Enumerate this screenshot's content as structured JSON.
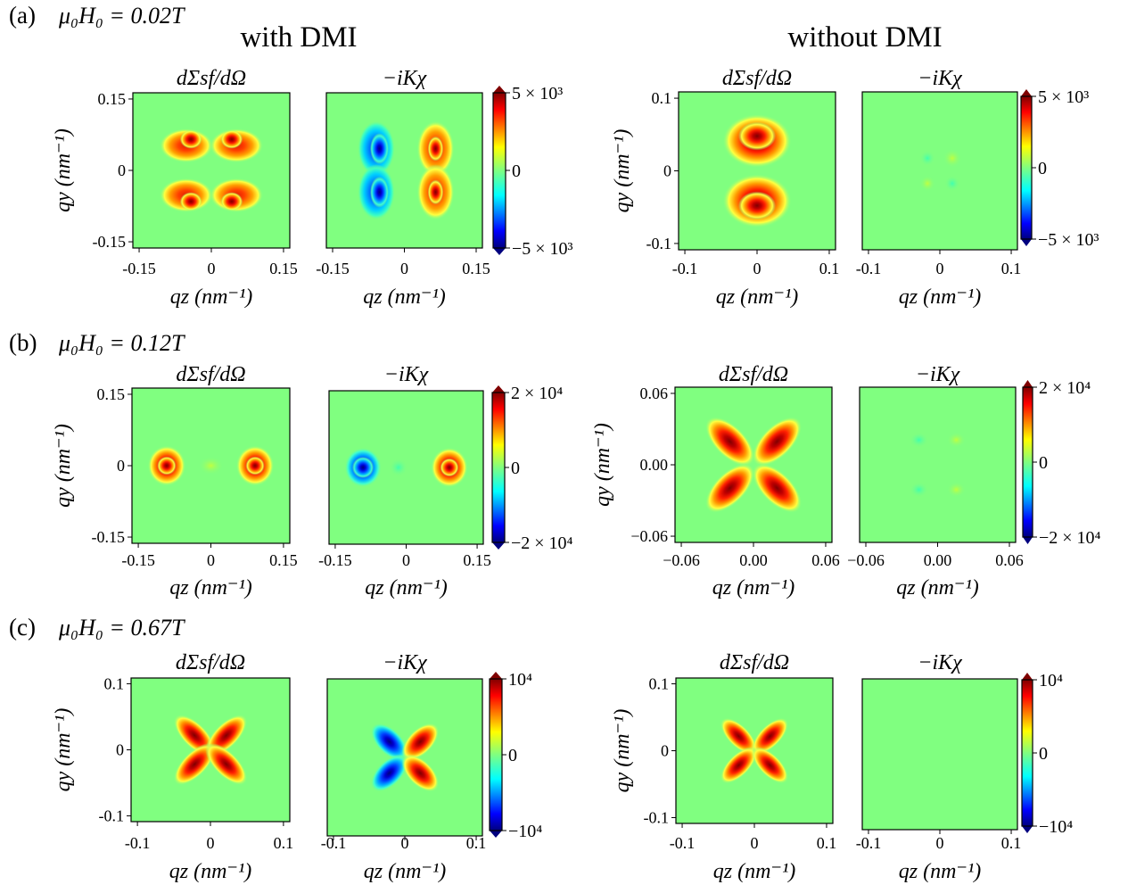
{
  "columns": {
    "left_title": "with DMI",
    "right_title": "without DMI"
  },
  "rows": [
    {
      "label": "(a)",
      "field": "μ₀H₀ = 0.02T",
      "cbar": [
        "5 × 10³",
        "0",
        "−5 × 10³"
      ],
      "dmi": {
        "yticks": [
          "0.15",
          "0",
          "-0.15"
        ],
        "xticks": [
          "-0.15",
          "0",
          "0.15"
        ]
      },
      "nodmi": {
        "yticks": [
          "0.1",
          "0",
          "-0.1"
        ],
        "xticks": [
          "-0.1",
          "0",
          "0.1"
        ]
      }
    },
    {
      "label": "(b)",
      "field": "μ₀H₀ = 0.12T",
      "cbar": [
        "2 × 10⁴",
        "0",
        "−2 × 10⁴"
      ],
      "dmi": {
        "yticks": [
          "0.15",
          "0",
          "-0.15"
        ],
        "xticks": [
          "-0.15",
          "0",
          "0.15"
        ]
      },
      "nodmi": {
        "yticks": [
          "0.06",
          "0.00",
          "−0.06"
        ],
        "xticks": [
          "−0.06",
          "0.00",
          "0.06"
        ]
      }
    },
    {
      "label": "(c)",
      "field": "μ₀H₀ = 0.67T",
      "cbar": [
        "10⁴",
        "0",
        "−10⁴"
      ],
      "dmi": {
        "yticks": [
          "0.1",
          "0",
          "-0.1"
        ],
        "xticks": [
          "-0.1",
          "0",
          "0.1"
        ]
      },
      "nodmi": {
        "yticks": [
          "0.1",
          "0",
          "-0.1"
        ],
        "xticks": [
          "-0.1",
          "0",
          "0.1"
        ]
      }
    }
  ],
  "panel_titles": {
    "cross_section": "dΣsf/dΩ",
    "chiral": "−iKχ"
  },
  "axes": {
    "xlabel": "qz (nm⁻¹)",
    "ylabel": "qy (nm⁻¹)"
  },
  "colors": {
    "background_level": "#80ff80",
    "positive_max": "#800000",
    "negative_max": "#00007f",
    "colormap": "jet"
  }
}
